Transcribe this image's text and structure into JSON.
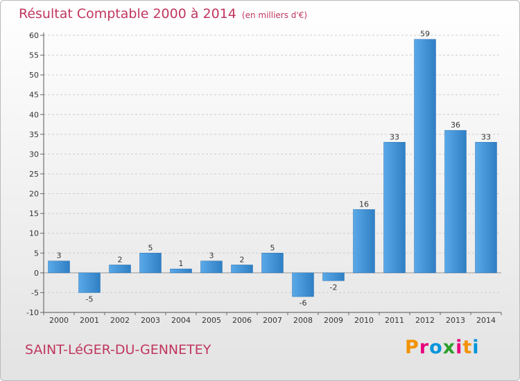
{
  "chart_data": {
    "type": "bar",
    "title": "Résultat Comptable 2000 à 2014",
    "subtitle": "(en milliers d'€)",
    "categories": [
      "2000",
      "2001",
      "2002",
      "2003",
      "2004",
      "2005",
      "2006",
      "2007",
      "2008",
      "2009",
      "2010",
      "2011",
      "2012",
      "2013",
      "2014"
    ],
    "values": [
      3,
      -5,
      2,
      5,
      1,
      3,
      2,
      5,
      -6,
      -2,
      16,
      33,
      59,
      36,
      33
    ],
    "ylim": [
      -10,
      60
    ],
    "yticks": [
      -10,
      -5,
      0,
      5,
      10,
      15,
      20,
      25,
      30,
      35,
      40,
      45,
      50,
      55,
      60
    ],
    "grid": true,
    "bar_color": "#3a8fd4"
  },
  "footer": {
    "commune": "SAINT-LéGER-DU-GENNETEY",
    "logo": "Proxiti"
  },
  "colors": {
    "title": "#c0365e",
    "logo_letters": [
      "#f39200",
      "#e6007e",
      "#0095db",
      "#2ca02c",
      "#e6007e",
      "#f39200",
      "#0095db"
    ]
  }
}
